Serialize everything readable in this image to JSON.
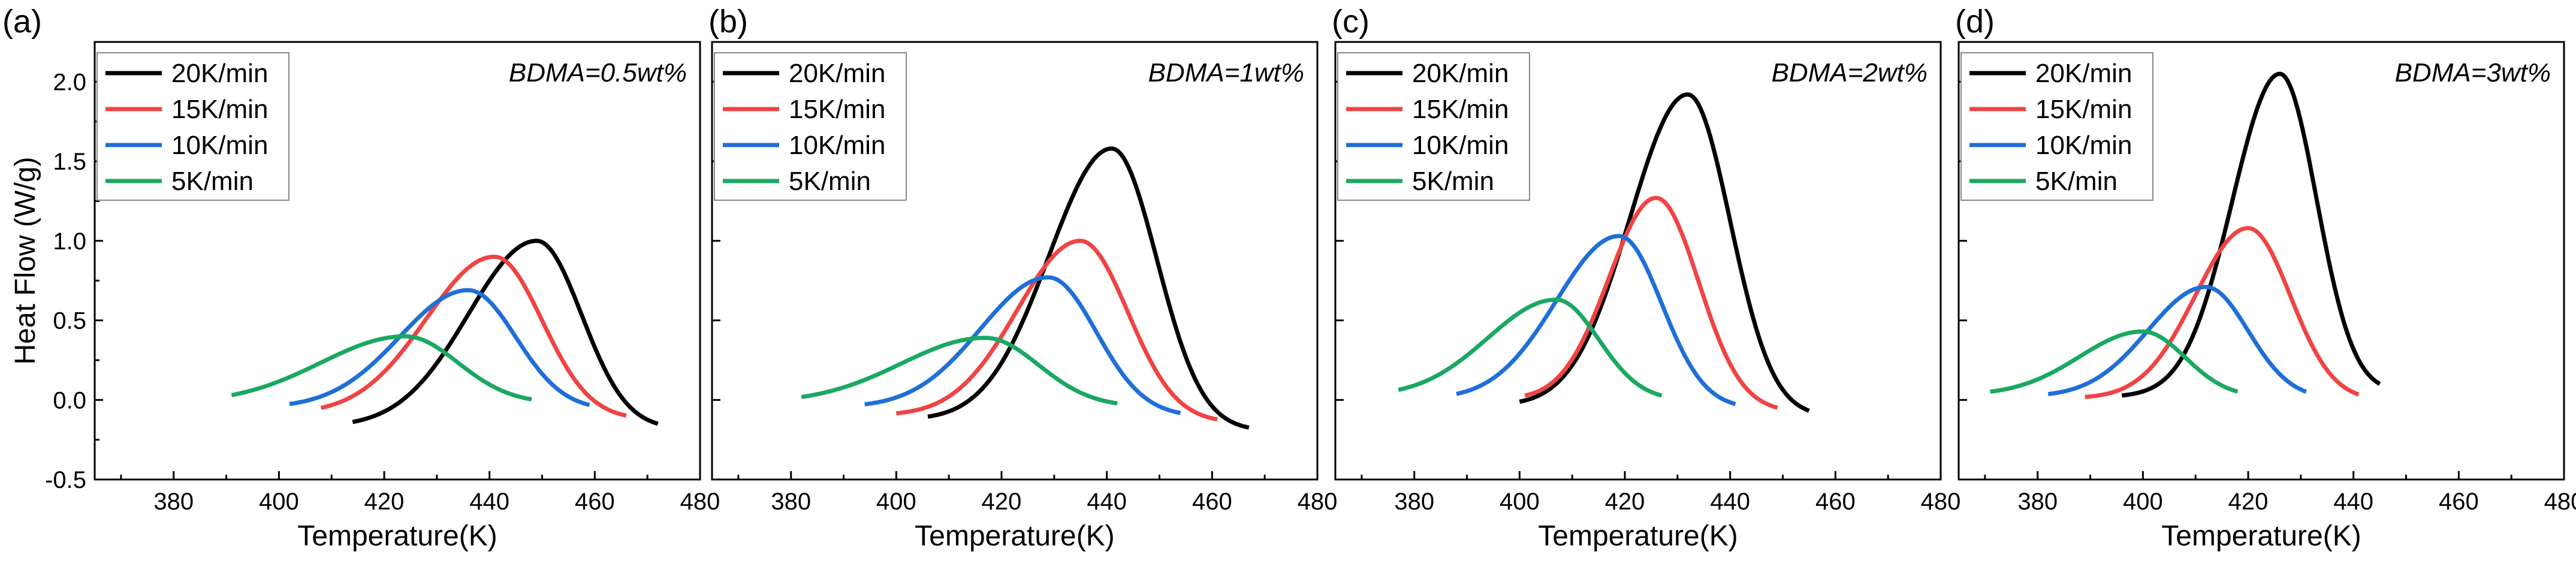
{
  "chart_data": [
    {
      "type": "line",
      "panel_label": "(a)",
      "annotation": "BDMA=0.5wt%",
      "xlabel": "Temperature(K)",
      "ylabel": "Heat Flow (W/g)",
      "xlim": [
        365,
        480
      ],
      "ylim": [
        -0.5,
        2.25
      ],
      "xticks": [
        "380",
        "400",
        "420",
        "440",
        "460",
        "480"
      ],
      "yticks": [
        "-0.5",
        "0.0",
        "0.5",
        "1.0",
        "1.5",
        "2.0"
      ],
      "legend_position": "top-left",
      "series": [
        {
          "name": "20K/min",
          "color": "#000000",
          "start": 414,
          "end": 472,
          "base_start": -0.17,
          "base_end": -0.18,
          "peak_x": 449,
          "peak_y": 1.0,
          "sigma_left": 13,
          "sigma_right": 8.5
        },
        {
          "name": "15K/min",
          "color": "#ef4444",
          "start": 408,
          "end": 466,
          "base_start": -0.09,
          "base_end": -0.12,
          "peak_x": 441,
          "peak_y": 0.9,
          "sigma_left": 13,
          "sigma_right": 9
        },
        {
          "name": "10K/min",
          "color": "#1f6fd6",
          "start": 402,
          "end": 459,
          "base_start": -0.05,
          "base_end": -0.06,
          "peak_x": 436,
          "peak_y": 0.69,
          "sigma_left": 13,
          "sigma_right": 9
        },
        {
          "name": "5K/min",
          "color": "#1aa862",
          "start": 391,
          "end": 448,
          "base_start": -0.02,
          "base_end": -0.02,
          "peak_x": 424,
          "peak_y": 0.4,
          "sigma_left": 16,
          "sigma_right": 10
        }
      ]
    },
    {
      "type": "line",
      "panel_label": "(b)",
      "annotation": "BDMA=1wt%",
      "xlabel": "Temperature(K)",
      "ylabel": "",
      "xlim": [
        365,
        480
      ],
      "ylim": [
        -0.5,
        2.25
      ],
      "xticks": [
        "380",
        "400",
        "420",
        "440",
        "460",
        "480"
      ],
      "yticks": [],
      "legend_position": "top-left",
      "series": [
        {
          "name": "20K/min",
          "color": "#000000",
          "start": 406,
          "end": 467,
          "base_start": -0.13,
          "base_end": -0.19,
          "peak_x": 441,
          "peak_y": 1.58,
          "sigma_left": 12,
          "sigma_right": 8.5
        },
        {
          "name": "15K/min",
          "color": "#ef4444",
          "start": 400,
          "end": 461,
          "base_start": -0.1,
          "base_end": -0.14,
          "peak_x": 435,
          "peak_y": 1.0,
          "sigma_left": 12,
          "sigma_right": 9
        },
        {
          "name": "10K/min",
          "color": "#1f6fd6",
          "start": 394,
          "end": 454,
          "base_start": -0.05,
          "base_end": -0.1,
          "peak_x": 429,
          "peak_y": 0.77,
          "sigma_left": 13,
          "sigma_right": 9
        },
        {
          "name": "5K/min",
          "color": "#1aa862",
          "start": 382,
          "end": 442,
          "base_start": -0.02,
          "base_end": -0.04,
          "peak_x": 417,
          "peak_y": 0.39,
          "sigma_left": 16,
          "sigma_right": 10
        }
      ]
    },
    {
      "type": "line",
      "panel_label": "(c)",
      "annotation": "BDMA=2wt%",
      "xlabel": "Temperature(K)",
      "ylabel": "",
      "xlim": [
        365,
        480
      ],
      "ylim": [
        -0.5,
        2.25
      ],
      "xticks": [
        "380",
        "400",
        "420",
        "440",
        "460",
        "480"
      ],
      "yticks": [],
      "legend_position": "top-left",
      "series": [
        {
          "name": "20K/min",
          "color": "#000000",
          "start": 400,
          "end": 455,
          "base_start": -0.04,
          "base_end": -0.1,
          "peak_x": 432,
          "peak_y": 1.92,
          "sigma_left": 11,
          "sigma_right": 8
        },
        {
          "name": "15K/min",
          "color": "#ef4444",
          "start": 401,
          "end": 449,
          "base_start": 0.0,
          "base_end": -0.07,
          "peak_x": 426,
          "peak_y": 1.27,
          "sigma_left": 9,
          "sigma_right": 8
        },
        {
          "name": "10K/min",
          "color": "#1f6fd6",
          "start": 388,
          "end": 441,
          "base_start": 0.0,
          "base_end": -0.05,
          "peak_x": 419,
          "peak_y": 1.03,
          "sigma_left": 12,
          "sigma_right": 8
        },
        {
          "name": "5K/min",
          "color": "#1aa862",
          "start": 377,
          "end": 427,
          "base_start": 0.02,
          "base_end": 0.0,
          "peak_x": 407,
          "peak_y": 0.63,
          "sigma_left": 13,
          "sigma_right": 8
        }
      ]
    },
    {
      "type": "line",
      "panel_label": "(d)",
      "annotation": "BDMA=3wt%",
      "xlabel": "Temperature(K)",
      "ylabel": "",
      "xlim": [
        365,
        480
      ],
      "ylim": [
        -0.5,
        2.25
      ],
      "xticks": [
        "380",
        "400",
        "420",
        "440",
        "460",
        "480"
      ],
      "yticks": [],
      "legend_position": "top-left",
      "series": [
        {
          "name": "20K/min",
          "color": "#000000",
          "start": 396,
          "end": 445,
          "base_start": 0.02,
          "base_end": 0.05,
          "peak_x": 426,
          "peak_y": 2.05,
          "sigma_left": 9,
          "sigma_right": 7
        },
        {
          "name": "15K/min",
          "color": "#ef4444",
          "start": 389,
          "end": 441,
          "base_start": 0.01,
          "base_end": 0.0,
          "peak_x": 420,
          "peak_y": 1.08,
          "sigma_left": 10,
          "sigma_right": 8
        },
        {
          "name": "10K/min",
          "color": "#1f6fd6",
          "start": 382,
          "end": 431,
          "base_start": 0.02,
          "base_end": 0.01,
          "peak_x": 412,
          "peak_y": 0.71,
          "sigma_left": 11,
          "sigma_right": 8
        },
        {
          "name": "5K/min",
          "color": "#1aa862",
          "start": 371,
          "end": 418,
          "base_start": 0.03,
          "base_end": 0.02,
          "peak_x": 400,
          "peak_y": 0.43,
          "sigma_left": 12,
          "sigma_right": 8
        }
      ]
    }
  ]
}
